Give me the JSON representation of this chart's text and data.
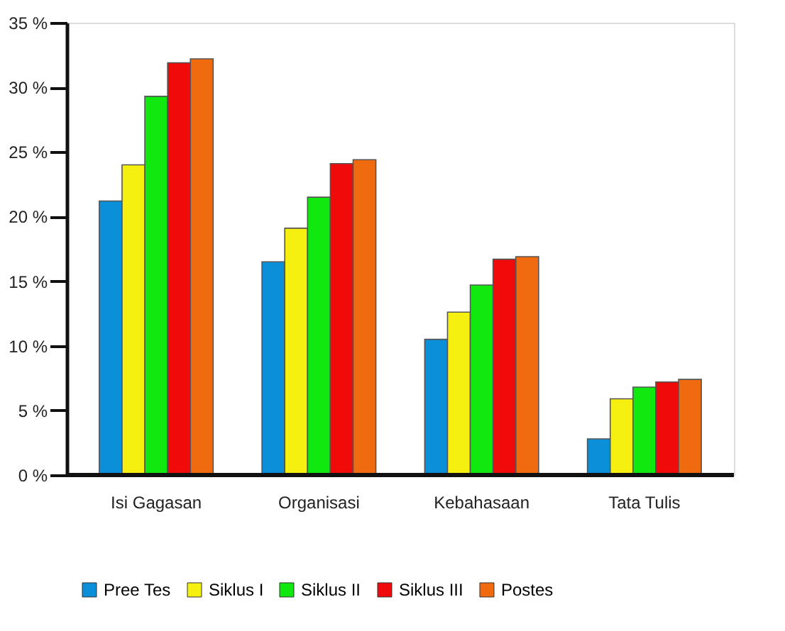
{
  "chart_data": {
    "type": "bar",
    "categories": [
      "Isi Gagasan",
      "Organisasi",
      "Kebahasaan",
      "Tata Tulis"
    ],
    "series": [
      {
        "name": "Pree Tes",
        "color": "#0a8fd8",
        "values": [
          21.2,
          16.5,
          10.5,
          2.8
        ]
      },
      {
        "name": "Siklus I",
        "color": "#f5f010",
        "values": [
          24.0,
          19.1,
          12.6,
          5.9
        ]
      },
      {
        "name": "Siklus II",
        "color": "#10e810",
        "values": [
          29.3,
          21.5,
          14.7,
          6.8
        ]
      },
      {
        "name": "Siklus III",
        "color": "#f00a0a",
        "values": [
          31.9,
          24.1,
          16.7,
          7.2
        ]
      },
      {
        "name": "Postes",
        "color": "#f06a10",
        "values": [
          32.2,
          24.4,
          16.9,
          7.4
        ]
      }
    ],
    "ylim": [
      0,
      35
    ],
    "yticks": [
      {
        "value": 0,
        "label": "0 %"
      },
      {
        "value": 5,
        "label": "5 %"
      },
      {
        "value": 10,
        "label": "10 %"
      },
      {
        "value": 15,
        "label": "15 %"
      },
      {
        "value": 20,
        "label": "20 %"
      },
      {
        "value": 25,
        "label": "25 %"
      },
      {
        "value": 30,
        "label": "30 %"
      },
      {
        "value": 35,
        "label": "35 %"
      }
    ],
    "grid": false,
    "legend": "bottom"
  }
}
